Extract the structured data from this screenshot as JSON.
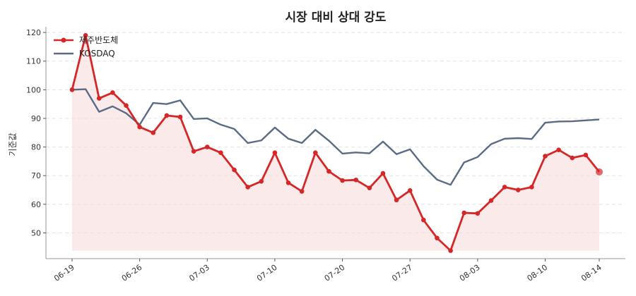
{
  "chart_data": {
    "type": "line",
    "title": "시장 대비 상대 강도",
    "ylabel": "기준값",
    "xlabel": "",
    "ylim": [
      41,
      122
    ],
    "yticks": [
      50,
      60,
      70,
      80,
      90,
      100,
      110,
      120
    ],
    "x_tick_labels": [
      "06-19",
      "06-26",
      "07-03",
      "07-10",
      "07-20",
      "07-27",
      "08-03",
      "08-10",
      "08-14"
    ],
    "x_tick_index": [
      0,
      5,
      10,
      15,
      20,
      25,
      30,
      35,
      39
    ],
    "grid": true,
    "legend": "top-left",
    "colors": {
      "stock": "#d62728",
      "index": "#5a6b85",
      "fill": "#f9dcdc"
    },
    "series": [
      {
        "name": "제주반도체",
        "values": [
          100,
          119,
          97,
          99,
          94.5,
          87,
          85,
          91,
          90.5,
          78.5,
          80,
          78,
          72,
          66,
          68,
          78,
          67.5,
          64.5,
          78,
          71.5,
          68.3,
          68.5,
          65.7,
          70.8,
          61.5,
          64.8,
          54.5,
          48.2,
          43.8,
          57,
          56.8,
          61.3,
          66,
          65,
          66,
          76.8,
          79,
          76.2,
          77.2,
          71.3
        ]
      },
      {
        "name": "KOSDAQ",
        "values": [
          100,
          100.2,
          92.3,
          94.2,
          91.8,
          87.8,
          95.4,
          95,
          96.3,
          89.8,
          90,
          87.8,
          86.3,
          81.4,
          82.3,
          86.8,
          82.9,
          81.4,
          86,
          82.2,
          77.7,
          78.1,
          77.8,
          81.9,
          77.5,
          79.2,
          73.3,
          68.6,
          66.8,
          74.6,
          76.5,
          81,
          82.9,
          83.1,
          82.8,
          88.5,
          88.9,
          89,
          89.3,
          89.6
        ]
      }
    ]
  }
}
